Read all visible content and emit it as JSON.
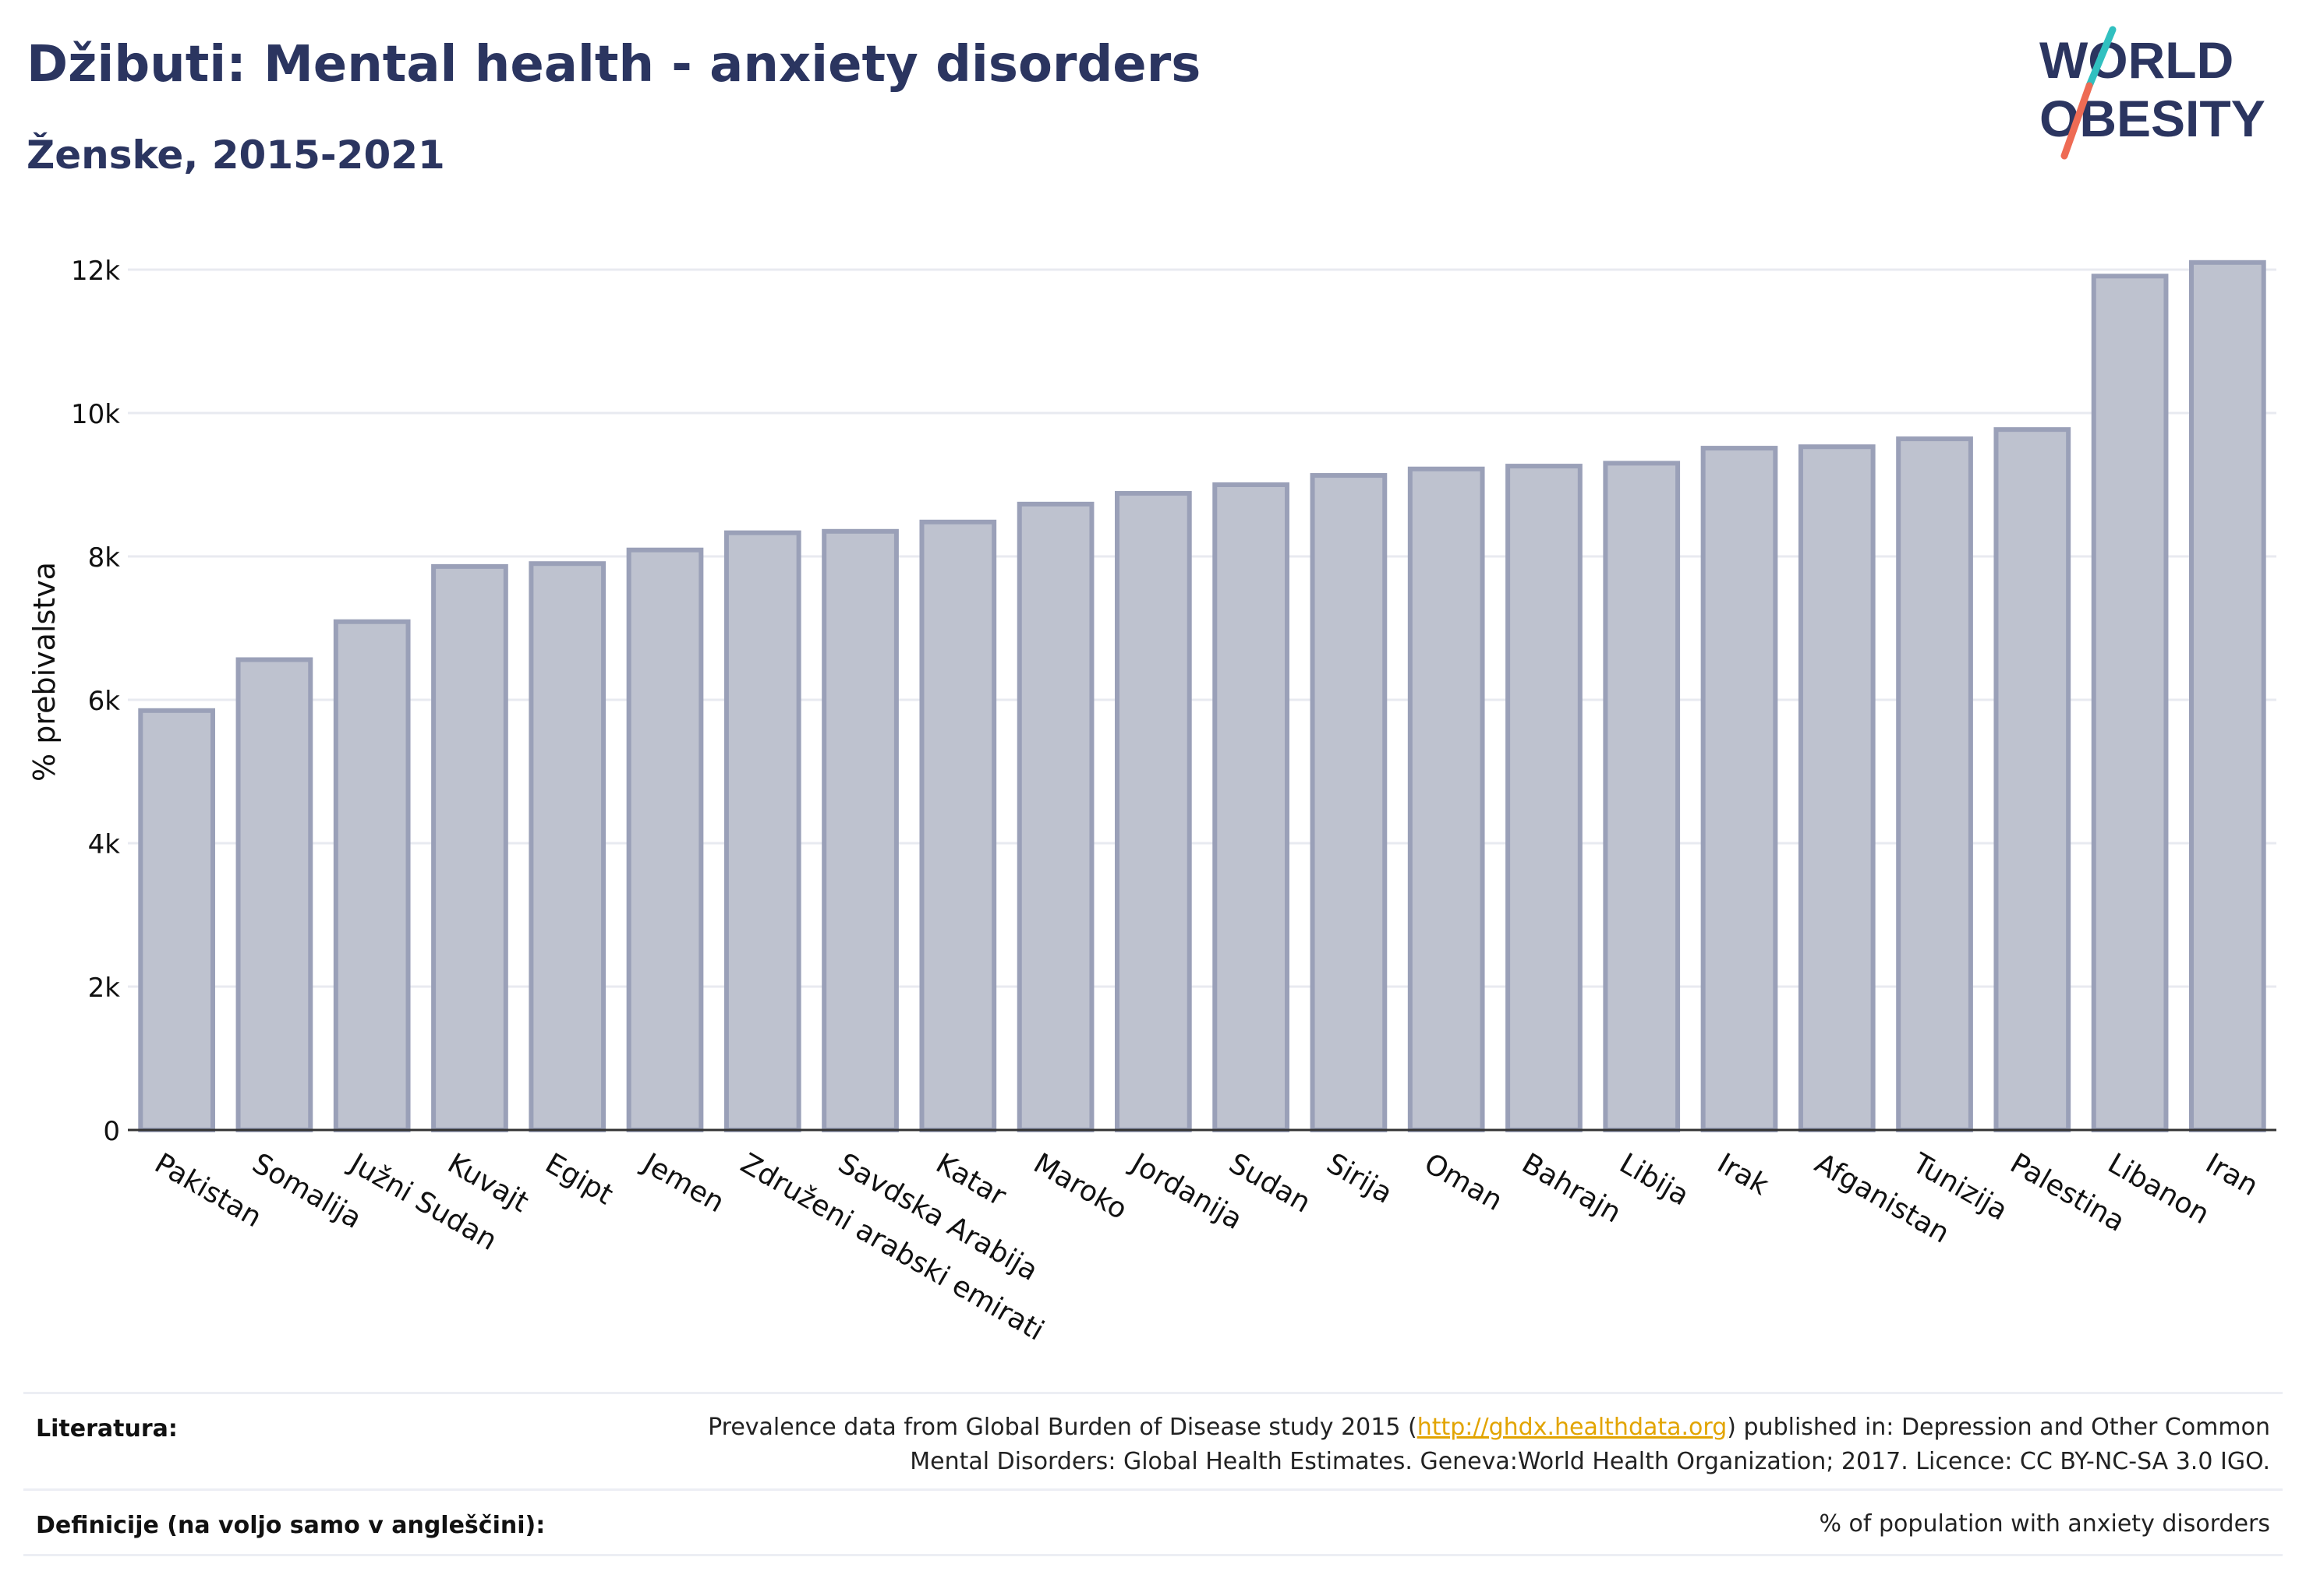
{
  "header": {
    "title": "Džibuti: Mental health - anxiety disorders",
    "subtitle": "Ženske, 2015-2021"
  },
  "logo": {
    "line1": "WORLD",
    "line2": "OBESITY",
    "slash_colors": [
      "#31c0c0",
      "#ee6b54"
    ]
  },
  "colors": {
    "bar_fill": "#bec2cf",
    "bar_stroke": "#9aa0b8",
    "text": "#2b3560",
    "grid": "#e8eaf0"
  },
  "chart_data": {
    "type": "bar",
    "title": "Džibuti: Mental health - anxiety disorders",
    "subtitle": "Ženske, 2015-2021",
    "ylabel": "% prebivalstva",
    "xlabel": "",
    "ylim": [
      0,
      12500
    ],
    "yticks": [
      0,
      2000,
      4000,
      6000,
      8000,
      10000,
      12000
    ],
    "ytick_labels": [
      "0",
      "2k",
      "4k",
      "6k",
      "8k",
      "10k",
      "12k"
    ],
    "grid": true,
    "categories": [
      "Pakistan",
      "Somalija",
      "Južni Sudan",
      "Kuvajt",
      "Egipt",
      "Jemen",
      "Združeni arabski emirati",
      "Savdska Arabija",
      "Katar",
      "Maroko",
      "Jordanija",
      "Sudan",
      "Sirija",
      "Oman",
      "Bahrajn",
      "Libija",
      "Irak",
      "Afganistan",
      "Tunizija",
      "Palestina",
      "Libanon",
      "Iran"
    ],
    "values": [
      5850,
      6560,
      7090,
      7860,
      7900,
      8090,
      8330,
      8350,
      8480,
      8730,
      8880,
      9000,
      9130,
      9220,
      9260,
      9300,
      9510,
      9530,
      9640,
      9770,
      11910,
      12100
    ]
  },
  "footer": {
    "literature_label": "Literatura:",
    "literature_text_1a": "Prevalence data from Global Burden of Disease study 2015 (",
    "literature_link": "http://ghdx.healthdata.org",
    "literature_text_1b": ") published in: Depression and Other Common",
    "literature_text_2": "Mental Disorders: Global Health Estimates. Geneva:World Health Organization; 2017. Licence: CC BY-NC-SA 3.0 IGO.",
    "definition_label": "Definicije (na voljo samo v angleščini):",
    "definition_text": "% of population with anxiety disorders"
  }
}
